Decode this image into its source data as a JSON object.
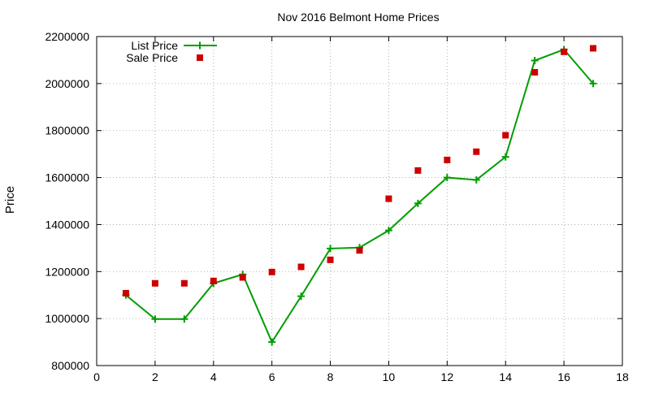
{
  "chart_data": {
    "type": "line",
    "title": "Nov 2016 Belmont Home Prices",
    "xlabel": "",
    "ylabel": "Price",
    "xlim": [
      0,
      18
    ],
    "ylim": [
      800000,
      2200000
    ],
    "xticks": [
      0,
      2,
      4,
      6,
      8,
      10,
      12,
      14,
      16,
      18
    ],
    "yticks": [
      800000,
      1000000,
      1200000,
      1400000,
      1600000,
      1800000,
      2000000,
      2200000
    ],
    "grid": true,
    "legend_position": "top-left",
    "series": [
      {
        "name": "List Price",
        "style": "line-points",
        "marker": "plus",
        "color": "#009e00",
        "x": [
          1,
          2,
          3,
          4,
          5,
          6,
          7,
          8,
          9,
          10,
          11,
          12,
          13,
          14,
          15,
          16,
          17
        ],
        "y": [
          1100000,
          998000,
          998000,
          1150000,
          1188000,
          900000,
          1095000,
          1298000,
          1302000,
          1375000,
          1490000,
          1600000,
          1590000,
          1688000,
          2098000,
          2145000,
          2000000
        ]
      },
      {
        "name": "Sale Price",
        "style": "points",
        "marker": "square",
        "color": "#cc0000",
        "x": [
          1,
          2,
          3,
          4,
          5,
          6,
          7,
          8,
          9,
          10,
          11,
          12,
          13,
          14,
          15,
          16,
          17
        ],
        "y": [
          1108000,
          1150000,
          1150000,
          1160000,
          1175000,
          1198000,
          1220000,
          1250000,
          1290000,
          1510000,
          1630000,
          1675000,
          1710000,
          1780000,
          2048000,
          2135000,
          2150000
        ]
      }
    ]
  }
}
